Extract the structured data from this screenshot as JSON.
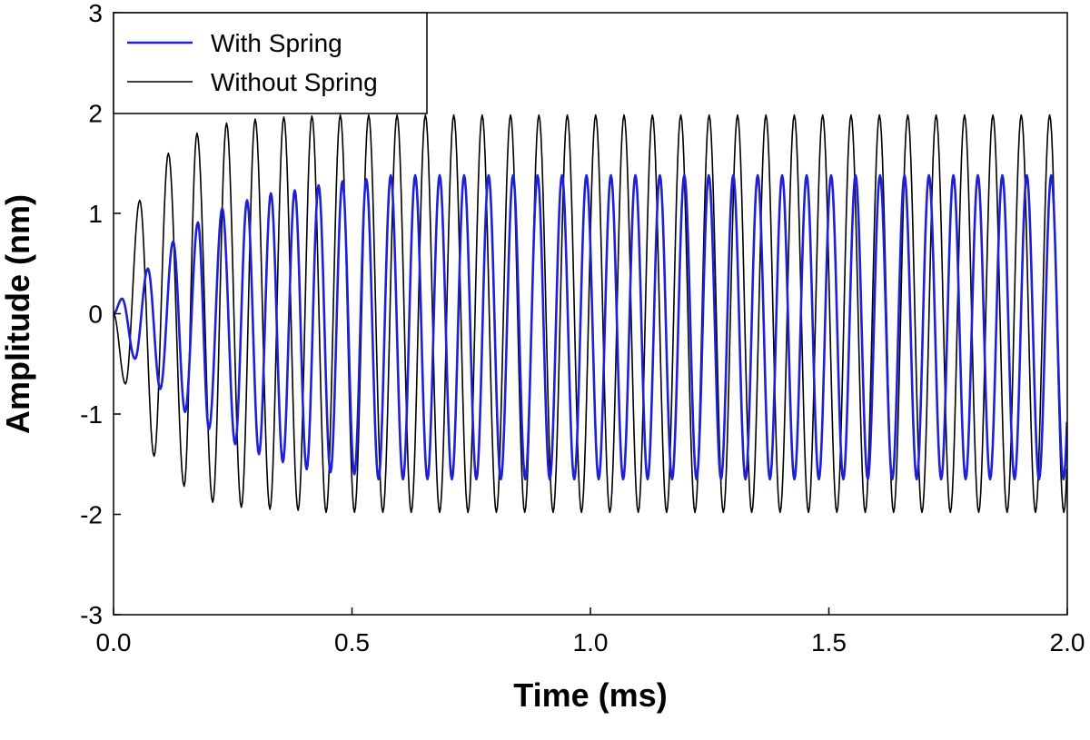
{
  "chart_data": {
    "type": "line",
    "title": "",
    "xlabel": "Time (ms)",
    "ylabel": "Amplitude (nm)",
    "xlim": [
      0.0,
      2.0
    ],
    "ylim": [
      -3,
      3
    ],
    "x_ticks": [
      "0.0",
      "0.5",
      "1.0",
      "1.5",
      "2.0"
    ],
    "y_ticks": [
      "3",
      "2",
      "1",
      "0",
      "-1",
      "-2",
      "-3"
    ],
    "x_tick_values": [
      0.0,
      0.5,
      1.0,
      1.5,
      2.0
    ],
    "y_tick_values": [
      3,
      2,
      1,
      0,
      -1,
      -2,
      -3
    ],
    "grid": false,
    "legend_position": "top-left",
    "series": [
      {
        "name": "With Spring",
        "color": "#1f1fd6",
        "oscillation_period_ms": 0.0513,
        "steady_peak": 1.38,
        "steady_trough": -1.65,
        "extrema": [
          {
            "x": 0.018,
            "y": 0.15
          },
          {
            "x": 0.045,
            "y": -0.45
          },
          {
            "x": 0.072,
            "y": 0.45
          },
          {
            "x": 0.098,
            "y": -0.75
          },
          {
            "x": 0.125,
            "y": 0.72
          },
          {
            "x": 0.15,
            "y": -0.98
          },
          {
            "x": 0.177,
            "y": 0.91
          },
          {
            "x": 0.2,
            "y": -1.15
          },
          {
            "x": 0.228,
            "y": 1.05
          },
          {
            "x": 0.255,
            "y": -1.3
          },
          {
            "x": 0.28,
            "y": 1.13
          },
          {
            "x": 0.305,
            "y": -1.4
          },
          {
            "x": 0.33,
            "y": 1.2
          },
          {
            "x": 0.355,
            "y": -1.48
          },
          {
            "x": 0.38,
            "y": 1.23
          },
          {
            "x": 0.405,
            "y": -1.55
          },
          {
            "x": 0.43,
            "y": 1.28
          },
          {
            "x": 0.455,
            "y": -1.58
          },
          {
            "x": 0.48,
            "y": 1.32
          },
          {
            "x": 0.505,
            "y": -1.6
          },
          {
            "x": 0.53,
            "y": 1.34
          }
        ]
      },
      {
        "name": "Without Spring",
        "color": "#000000",
        "oscillation_period_ms": 0.0595,
        "steady_peak": 1.98,
        "steady_trough": -1.98,
        "extrema": [
          {
            "x": 0.025,
            "y": -0.7
          },
          {
            "x": 0.055,
            "y": 1.13
          },
          {
            "x": 0.085,
            "y": -1.42
          },
          {
            "x": 0.115,
            "y": 1.6
          },
          {
            "x": 0.148,
            "y": -1.72
          },
          {
            "x": 0.175,
            "y": 1.8
          },
          {
            "x": 0.208,
            "y": -1.88
          },
          {
            "x": 0.237,
            "y": 1.9
          },
          {
            "x": 0.268,
            "y": -1.93
          },
          {
            "x": 0.297,
            "y": 1.94
          },
          {
            "x": 0.328,
            "y": -1.95
          },
          {
            "x": 0.357,
            "y": 1.96
          },
          {
            "x": 0.387,
            "y": -1.96
          },
          {
            "x": 0.416,
            "y": 1.97
          }
        ]
      }
    ]
  }
}
